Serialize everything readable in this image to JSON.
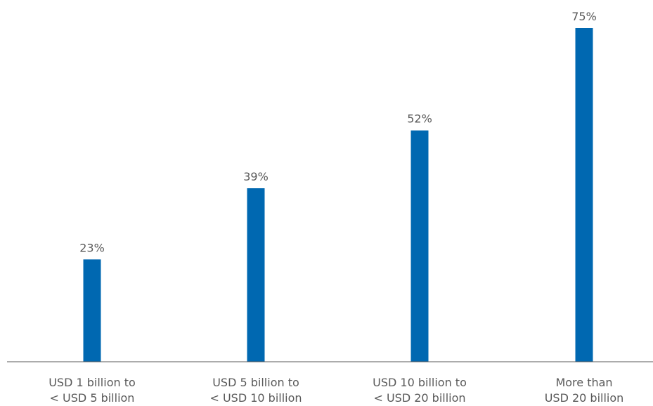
{
  "chart_data": {
    "type": "bar",
    "categories": [
      [
        "USD 1 billion to",
        "< USD 5 billion"
      ],
      [
        "USD 5 billion to",
        "< USD 10 billion"
      ],
      [
        "USD 10 billion to",
        "< USD 20 billion"
      ],
      [
        "More than",
        "USD 20 billion"
      ]
    ],
    "values": [
      23,
      39,
      52,
      75
    ],
    "data_labels": [
      "23%",
      "39%",
      "52%",
      "75%"
    ],
    "title": "",
    "xlabel": "",
    "ylabel": "",
    "ylim": [
      0,
      75
    ],
    "grid": false,
    "legend": "none",
    "colors": {
      "bar": "#0068b1",
      "axis": "#595959",
      "text": "#595959"
    }
  }
}
